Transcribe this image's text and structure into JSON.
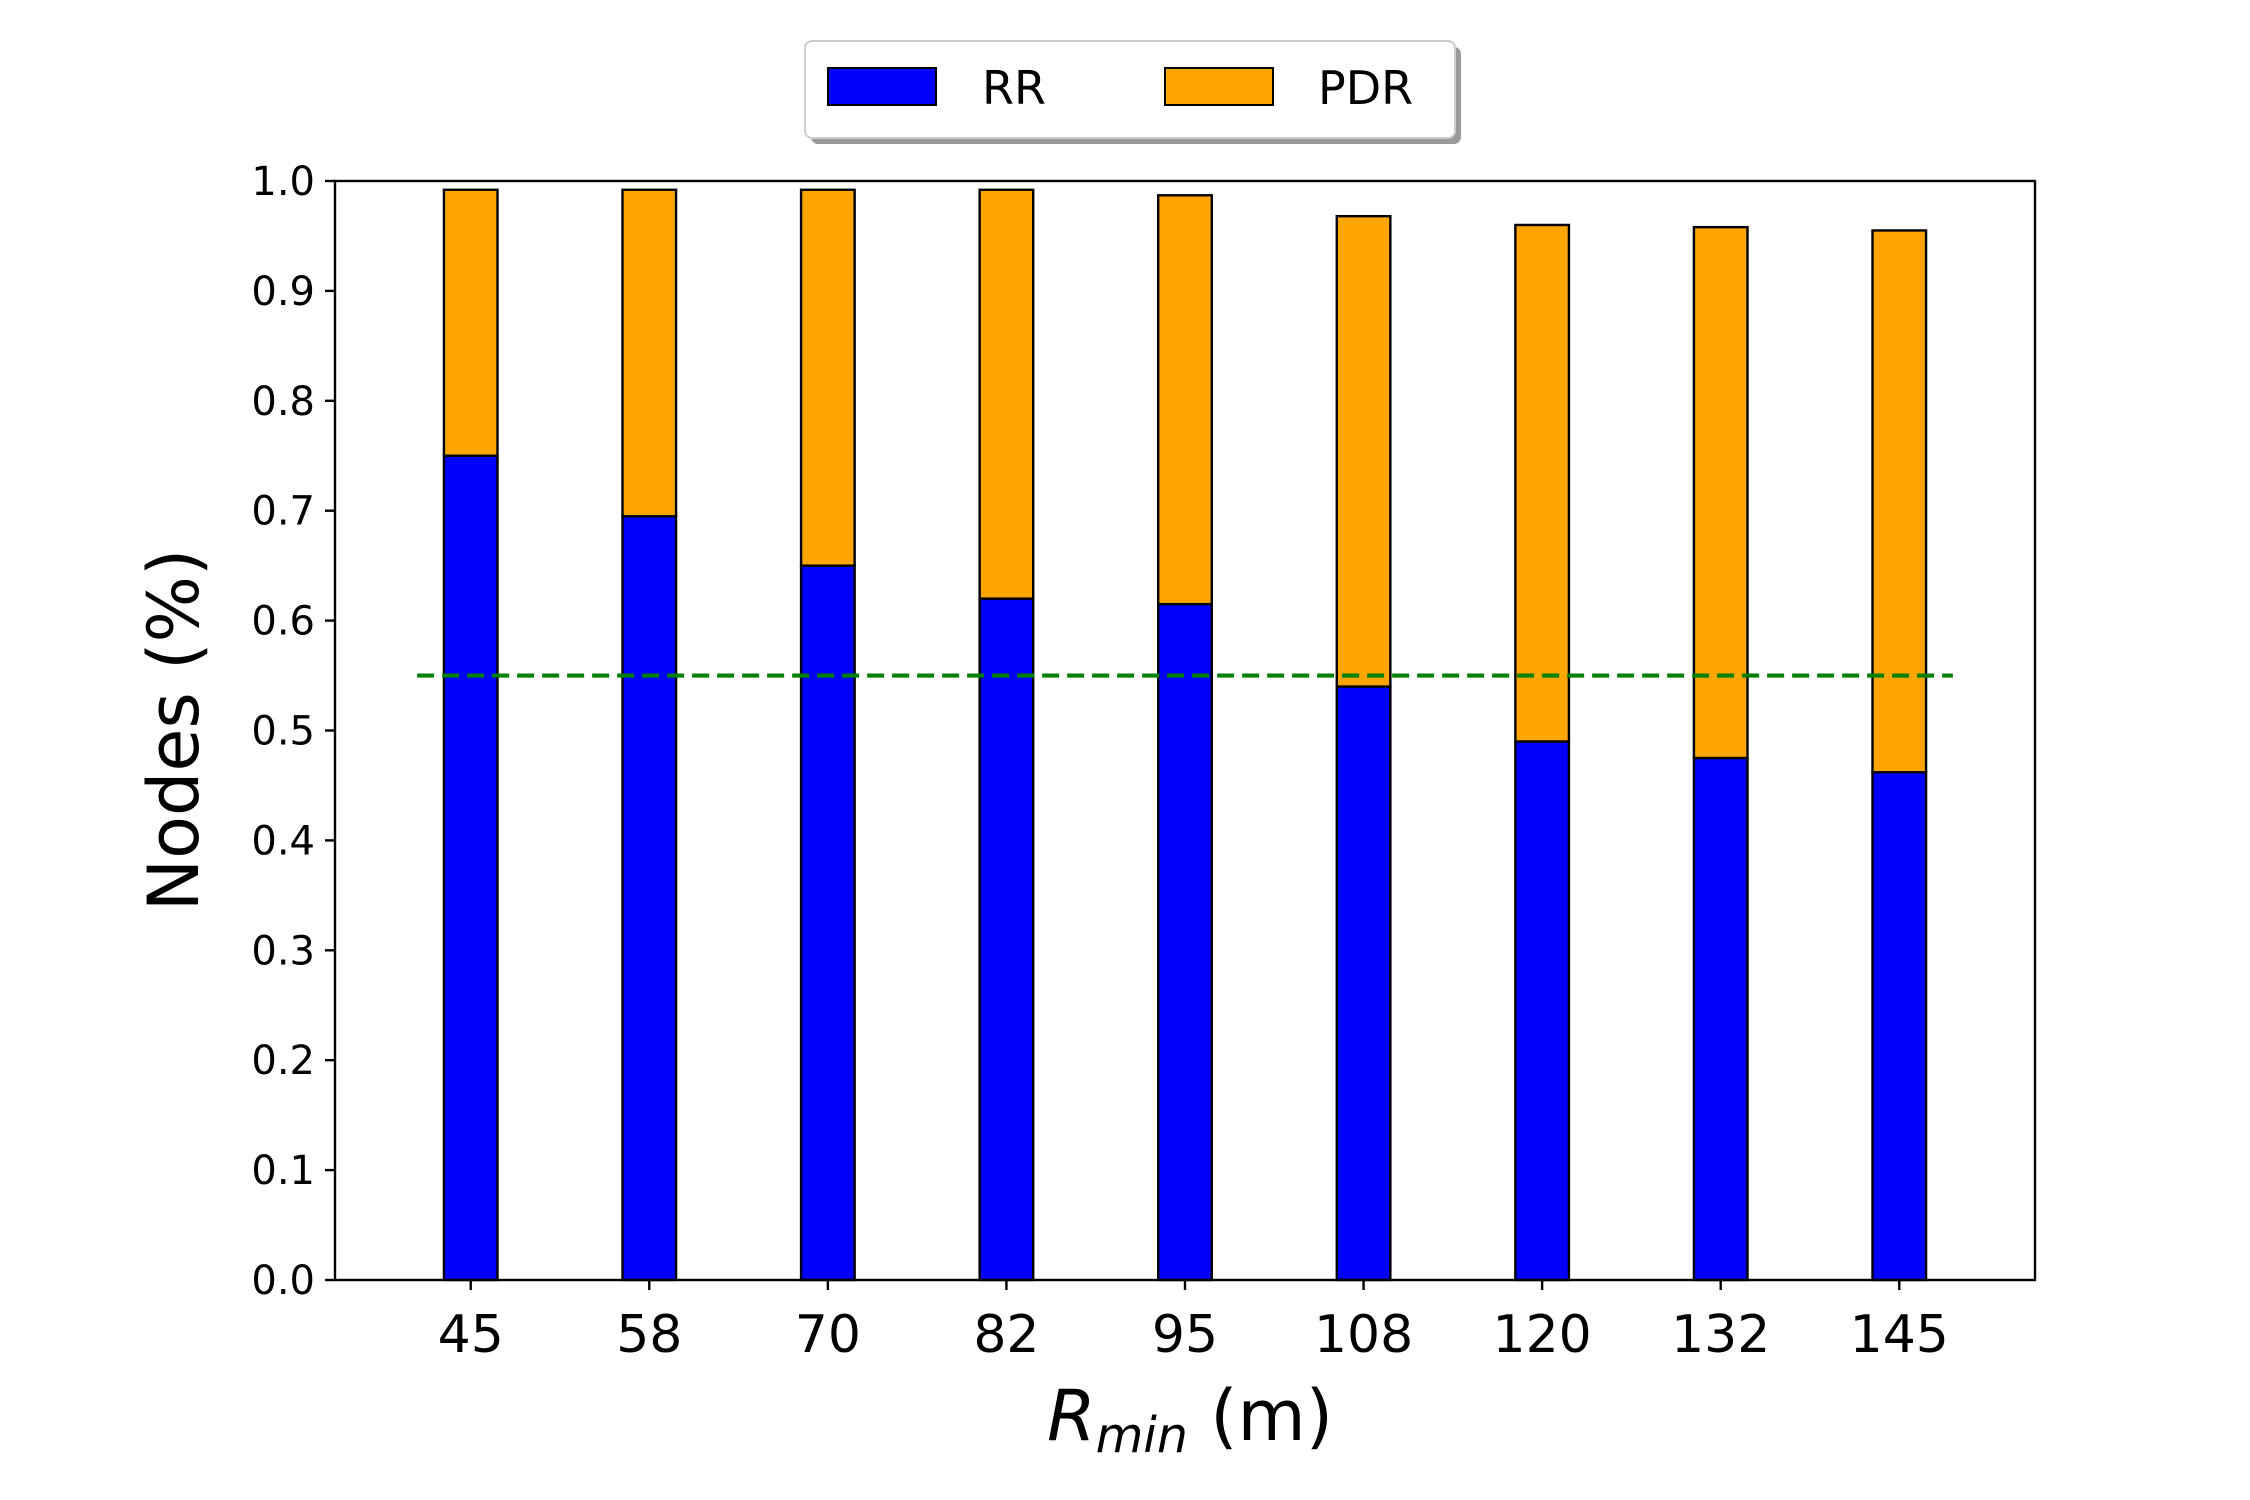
{
  "chart_data": {
    "type": "bar",
    "stacked": true,
    "categories": [
      "45",
      "58",
      "70",
      "82",
      "95",
      "108",
      "120",
      "132",
      "145"
    ],
    "series": [
      {
        "name": "RR",
        "color": "#0000ff",
        "values": [
          0.75,
          0.695,
          0.65,
          0.62,
          0.615,
          0.54,
          0.49,
          0.475,
          0.462
        ]
      },
      {
        "name": "PDR",
        "color": "#ffa500",
        "values": [
          0.242,
          0.297,
          0.342,
          0.372,
          0.372,
          0.428,
          0.47,
          0.483,
          0.493
        ]
      }
    ],
    "reference_line": {
      "y": 0.55,
      "color": "#008000",
      "style": "dashed"
    },
    "xlabel": {
      "main": "R",
      "subscript": "min",
      "suffix": " (m)"
    },
    "ylabel": "Nodes (%)",
    "ylim": [
      0,
      1.0
    ],
    "yticks": [
      "0.0",
      "0.1",
      "0.2",
      "0.3",
      "0.4",
      "0.5",
      "0.6",
      "0.7",
      "0.8",
      "0.9",
      "1.0"
    ],
    "grid": false,
    "legend_position": "top-center"
  }
}
